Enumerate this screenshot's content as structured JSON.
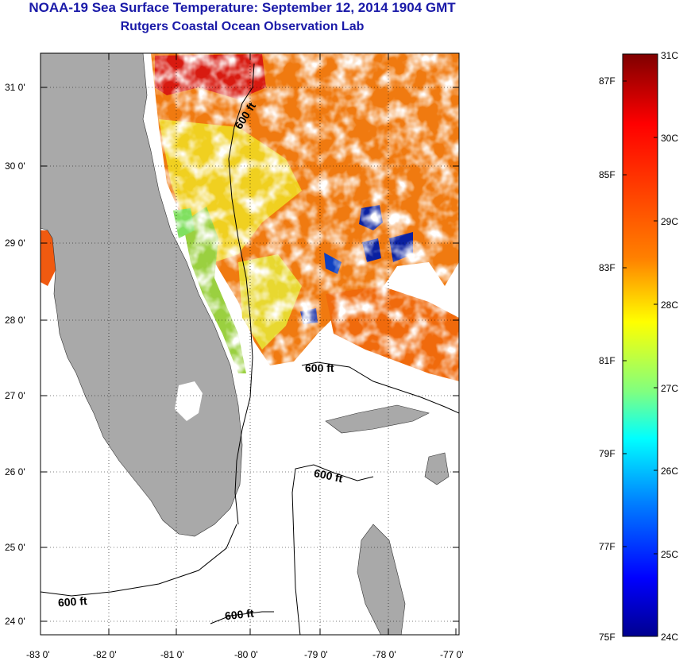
{
  "title": "NOAA-19 Sea Surface Temperature:  September 12, 2014 1904 GMT",
  "subtitle": "Rutgers Coastal Ocean Observation Lab",
  "map": {
    "lon_ticks": [
      "-83 0'",
      "-82 0'",
      "-81 0'",
      "-80 0'",
      "-79 0'",
      "-78 0'",
      "-77 0'"
    ],
    "lat_ticks": [
      "31 0'",
      "30 0'",
      "29 0'",
      "28 0'",
      "27 0'",
      "26 0'",
      "25 0'",
      "24 0'"
    ],
    "contour_labels": [
      "600 ft",
      "600 ft",
      "600 ft",
      "600 ft",
      "600 ft"
    ],
    "land_color": "#a9a9a9"
  },
  "colorbar": {
    "celsius_labels": [
      "31C",
      "30C",
      "29C",
      "28C",
      "27C",
      "26C",
      "25C",
      "24C"
    ],
    "fahrenheit_labels": [
      "87F",
      "85F",
      "83F",
      "81F",
      "79F",
      "77F",
      "75F"
    ],
    "celsius_range": [
      24,
      31
    ],
    "colormap": [
      "#7f0000",
      "#ff0000",
      "#ff8000",
      "#ffff00",
      "#80ff80",
      "#00ffff",
      "#0080ff",
      "#0000ff",
      "#00008f"
    ]
  }
}
